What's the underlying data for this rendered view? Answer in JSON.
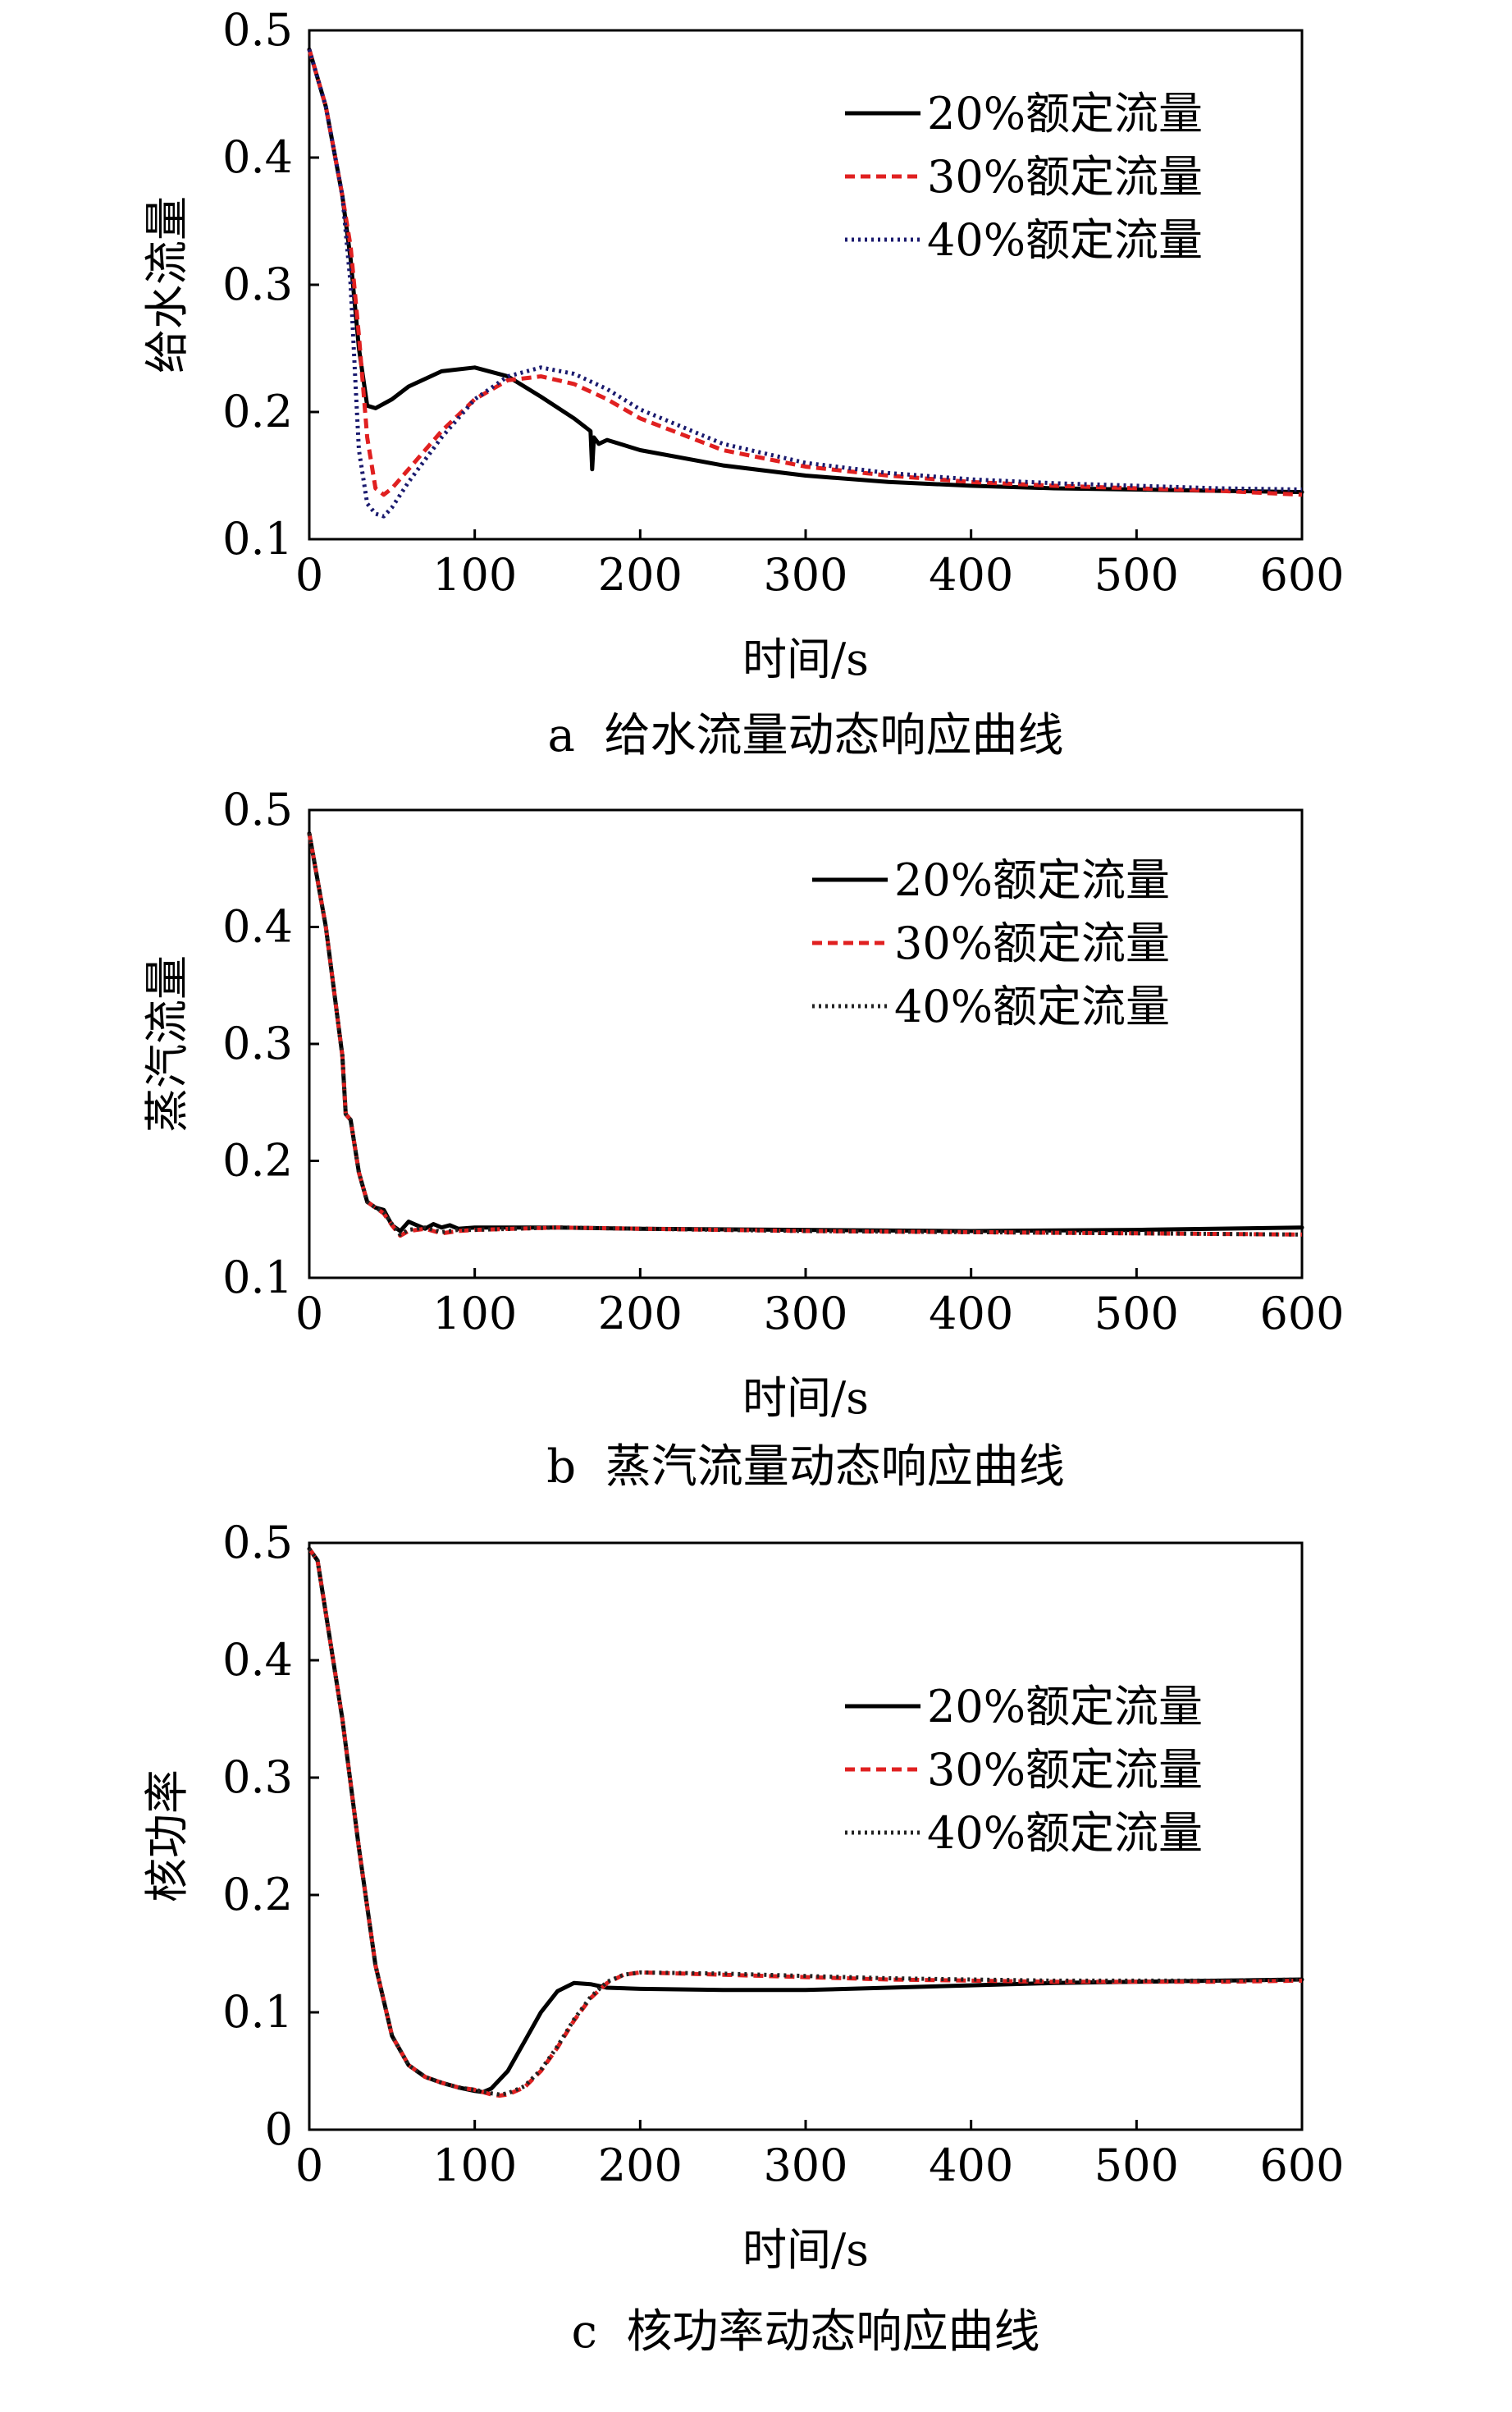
{
  "chart_data": [
    {
      "type": "line",
      "panel": "a",
      "caption": "a  给水流量动态响应曲线",
      "ylabel": "给水流量",
      "xlabel": "时间/s",
      "xlim": [
        0,
        600
      ],
      "ylim": [
        0.1,
        0.5
      ],
      "xticks": [
        "0",
        "100",
        "200",
        "300",
        "400",
        "500",
        "600"
      ],
      "yticks": [
        "0.1",
        "0.2",
        "0.3",
        "0.4",
        "0.5"
      ],
      "legend_position": "top-right",
      "series": [
        {
          "name": "20%额定流量",
          "style": "solid",
          "color": "#000000",
          "x": [
            0,
            10,
            20,
            25,
            30,
            35,
            40,
            50,
            60,
            80,
            100,
            120,
            140,
            160,
            170,
            171,
            172,
            175,
            180,
            200,
            250,
            300,
            350,
            400,
            450,
            500,
            550,
            600
          ],
          "y": [
            0.485,
            0.44,
            0.37,
            0.32,
            0.25,
            0.205,
            0.203,
            0.21,
            0.22,
            0.232,
            0.235,
            0.228,
            0.212,
            0.195,
            0.185,
            0.155,
            0.18,
            0.175,
            0.178,
            0.17,
            0.158,
            0.15,
            0.145,
            0.142,
            0.14,
            0.139,
            0.138,
            0.137
          ]
        },
        {
          "name": "30%额定流量",
          "style": "dashed",
          "color": "#e02020",
          "x": [
            0,
            10,
            20,
            25,
            30,
            35,
            40,
            45,
            50,
            60,
            80,
            100,
            120,
            140,
            160,
            180,
            200,
            250,
            300,
            350,
            400,
            450,
            500,
            550,
            600
          ],
          "y": [
            0.485,
            0.44,
            0.37,
            0.33,
            0.26,
            0.18,
            0.14,
            0.135,
            0.14,
            0.155,
            0.185,
            0.21,
            0.225,
            0.228,
            0.222,
            0.21,
            0.195,
            0.17,
            0.157,
            0.15,
            0.145,
            0.142,
            0.14,
            0.138,
            0.135
          ]
        },
        {
          "name": "40%额定流量",
          "style": "dotted",
          "color": "#1a1a6e",
          "x": [
            0,
            10,
            20,
            25,
            28,
            30,
            35,
            40,
            45,
            50,
            60,
            80,
            100,
            120,
            140,
            160,
            180,
            200,
            250,
            300,
            350,
            400,
            450,
            500,
            550,
            600
          ],
          "y": [
            0.485,
            0.44,
            0.37,
            0.3,
            0.22,
            0.17,
            0.128,
            0.12,
            0.118,
            0.125,
            0.145,
            0.18,
            0.21,
            0.228,
            0.235,
            0.23,
            0.218,
            0.202,
            0.175,
            0.16,
            0.152,
            0.147,
            0.144,
            0.142,
            0.14,
            0.139
          ]
        }
      ]
    },
    {
      "type": "line",
      "panel": "b",
      "caption": "b  蒸汽流量动态响应曲线",
      "ylabel": "蒸汽流量",
      "xlabel": "时间/s",
      "xlim": [
        0,
        600
      ],
      "ylim": [
        0.1,
        0.5
      ],
      "xticks": [
        "0",
        "100",
        "200",
        "300",
        "400",
        "500",
        "600"
      ],
      "yticks": [
        "0.1",
        "0.2",
        "0.3",
        "0.4",
        "0.5"
      ],
      "legend_position": "top-right",
      "series": [
        {
          "name": "20%额定流量",
          "style": "solid",
          "color": "#000000",
          "x": [
            0,
            10,
            20,
            22,
            25,
            30,
            35,
            40,
            45,
            50,
            55,
            60,
            65,
            70,
            75,
            80,
            85,
            90,
            100,
            150,
            200,
            300,
            400,
            500,
            600
          ],
          "y": [
            0.48,
            0.4,
            0.29,
            0.24,
            0.235,
            0.19,
            0.165,
            0.16,
            0.158,
            0.145,
            0.14,
            0.148,
            0.145,
            0.142,
            0.146,
            0.143,
            0.145,
            0.142,
            0.143,
            0.143,
            0.142,
            0.141,
            0.14,
            0.141,
            0.143
          ]
        },
        {
          "name": "30%额定流量",
          "style": "dashed",
          "color": "#e02020",
          "x": [
            0,
            10,
            20,
            22,
            25,
            30,
            35,
            40,
            45,
            50,
            55,
            60,
            70,
            80,
            90,
            100,
            150,
            200,
            300,
            400,
            500,
            600
          ],
          "y": [
            0.48,
            0.4,
            0.29,
            0.24,
            0.235,
            0.19,
            0.165,
            0.16,
            0.155,
            0.145,
            0.136,
            0.14,
            0.142,
            0.138,
            0.14,
            0.141,
            0.143,
            0.142,
            0.14,
            0.139,
            0.138,
            0.137
          ]
        },
        {
          "name": "40%额定流量",
          "style": "dotted",
          "color": "#222222",
          "x": [
            0,
            10,
            20,
            22,
            25,
            30,
            35,
            40,
            45,
            50,
            55,
            60,
            70,
            80,
            90,
            100,
            150,
            200,
            300,
            400,
            500,
            600
          ],
          "y": [
            0.48,
            0.4,
            0.29,
            0.24,
            0.235,
            0.19,
            0.165,
            0.16,
            0.156,
            0.146,
            0.137,
            0.141,
            0.143,
            0.139,
            0.141,
            0.141,
            0.143,
            0.142,
            0.14,
            0.139,
            0.138,
            0.137
          ]
        }
      ]
    },
    {
      "type": "line",
      "panel": "c",
      "caption": "c  核功率动态响应曲线",
      "ylabel": "核功率",
      "xlabel": "时间/s",
      "xlim": [
        0,
        600
      ],
      "ylim": [
        0,
        0.5
      ],
      "xticks": [
        "0",
        "100",
        "200",
        "300",
        "400",
        "500",
        "600"
      ],
      "yticks": [
        "0",
        "0.1",
        "0.2",
        "0.3",
        "0.4",
        "0.5"
      ],
      "legend_position": "right",
      "series": [
        {
          "name": "20%额定流量",
          "style": "solid",
          "color": "#000000",
          "x": [
            0,
            5,
            10,
            20,
            30,
            40,
            50,
            60,
            70,
            80,
            90,
            100,
            105,
            110,
            120,
            130,
            140,
            150,
            160,
            170,
            180,
            200,
            250,
            300,
            350,
            400,
            450,
            500,
            550,
            600
          ],
          "y": [
            0.495,
            0.485,
            0.44,
            0.35,
            0.24,
            0.14,
            0.08,
            0.055,
            0.045,
            0.04,
            0.036,
            0.033,
            0.032,
            0.035,
            0.05,
            0.075,
            0.1,
            0.118,
            0.125,
            0.124,
            0.121,
            0.12,
            0.119,
            0.119,
            0.121,
            0.123,
            0.125,
            0.126,
            0.127,
            0.128
          ]
        },
        {
          "name": "30%额定流量",
          "style": "dashed",
          "color": "#e02020",
          "x": [
            0,
            5,
            10,
            20,
            30,
            40,
            50,
            60,
            70,
            80,
            90,
            100,
            110,
            115,
            120,
            130,
            140,
            150,
            160,
            170,
            180,
            190,
            200,
            250,
            300,
            350,
            400,
            450,
            500,
            550,
            600
          ],
          "y": [
            0.495,
            0.485,
            0.44,
            0.35,
            0.24,
            0.14,
            0.08,
            0.055,
            0.045,
            0.04,
            0.036,
            0.034,
            0.03,
            0.029,
            0.03,
            0.036,
            0.05,
            0.07,
            0.093,
            0.112,
            0.125,
            0.132,
            0.134,
            0.132,
            0.13,
            0.128,
            0.127,
            0.126,
            0.126,
            0.126,
            0.127
          ]
        },
        {
          "name": "40%额定流量",
          "style": "dotted",
          "color": "#222222",
          "x": [
            0,
            5,
            10,
            20,
            30,
            40,
            50,
            60,
            70,
            80,
            90,
            100,
            110,
            115,
            120,
            130,
            140,
            150,
            160,
            170,
            180,
            190,
            200,
            250,
            300,
            350,
            400,
            450,
            500,
            550,
            600
          ],
          "y": [
            0.495,
            0.485,
            0.44,
            0.35,
            0.24,
            0.14,
            0.08,
            0.055,
            0.045,
            0.04,
            0.036,
            0.034,
            0.031,
            0.03,
            0.031,
            0.037,
            0.051,
            0.071,
            0.094,
            0.113,
            0.126,
            0.132,
            0.134,
            0.133,
            0.131,
            0.129,
            0.128,
            0.127,
            0.127,
            0.127,
            0.128
          ]
        }
      ]
    }
  ]
}
